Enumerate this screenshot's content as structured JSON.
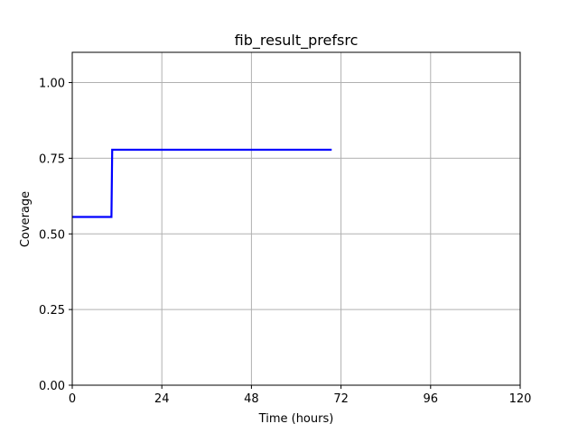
{
  "chart_data": {
    "type": "line",
    "title": "fib_result_prefsrc",
    "xlabel": "Time (hours)",
    "ylabel": "Coverage",
    "xlim": [
      0,
      120
    ],
    "ylim": [
      0,
      1.1
    ],
    "xticks": [
      0,
      24,
      48,
      72,
      96,
      120
    ],
    "xtick_labels": [
      "0",
      "24",
      "48",
      "72",
      "96",
      "120"
    ],
    "yticks": [
      0,
      0.25,
      0.5,
      0.75,
      1.0
    ],
    "ytick_labels": [
      "0.00",
      "0.25",
      "0.50",
      "0.75",
      "1.00"
    ],
    "grid": true,
    "series": [
      {
        "color": "#0000ff",
        "step": true,
        "x": [
          0,
          10.5,
          10.7,
          69.5
        ],
        "y": [
          0.556,
          0.556,
          0.778,
          0.778
        ]
      }
    ]
  }
}
